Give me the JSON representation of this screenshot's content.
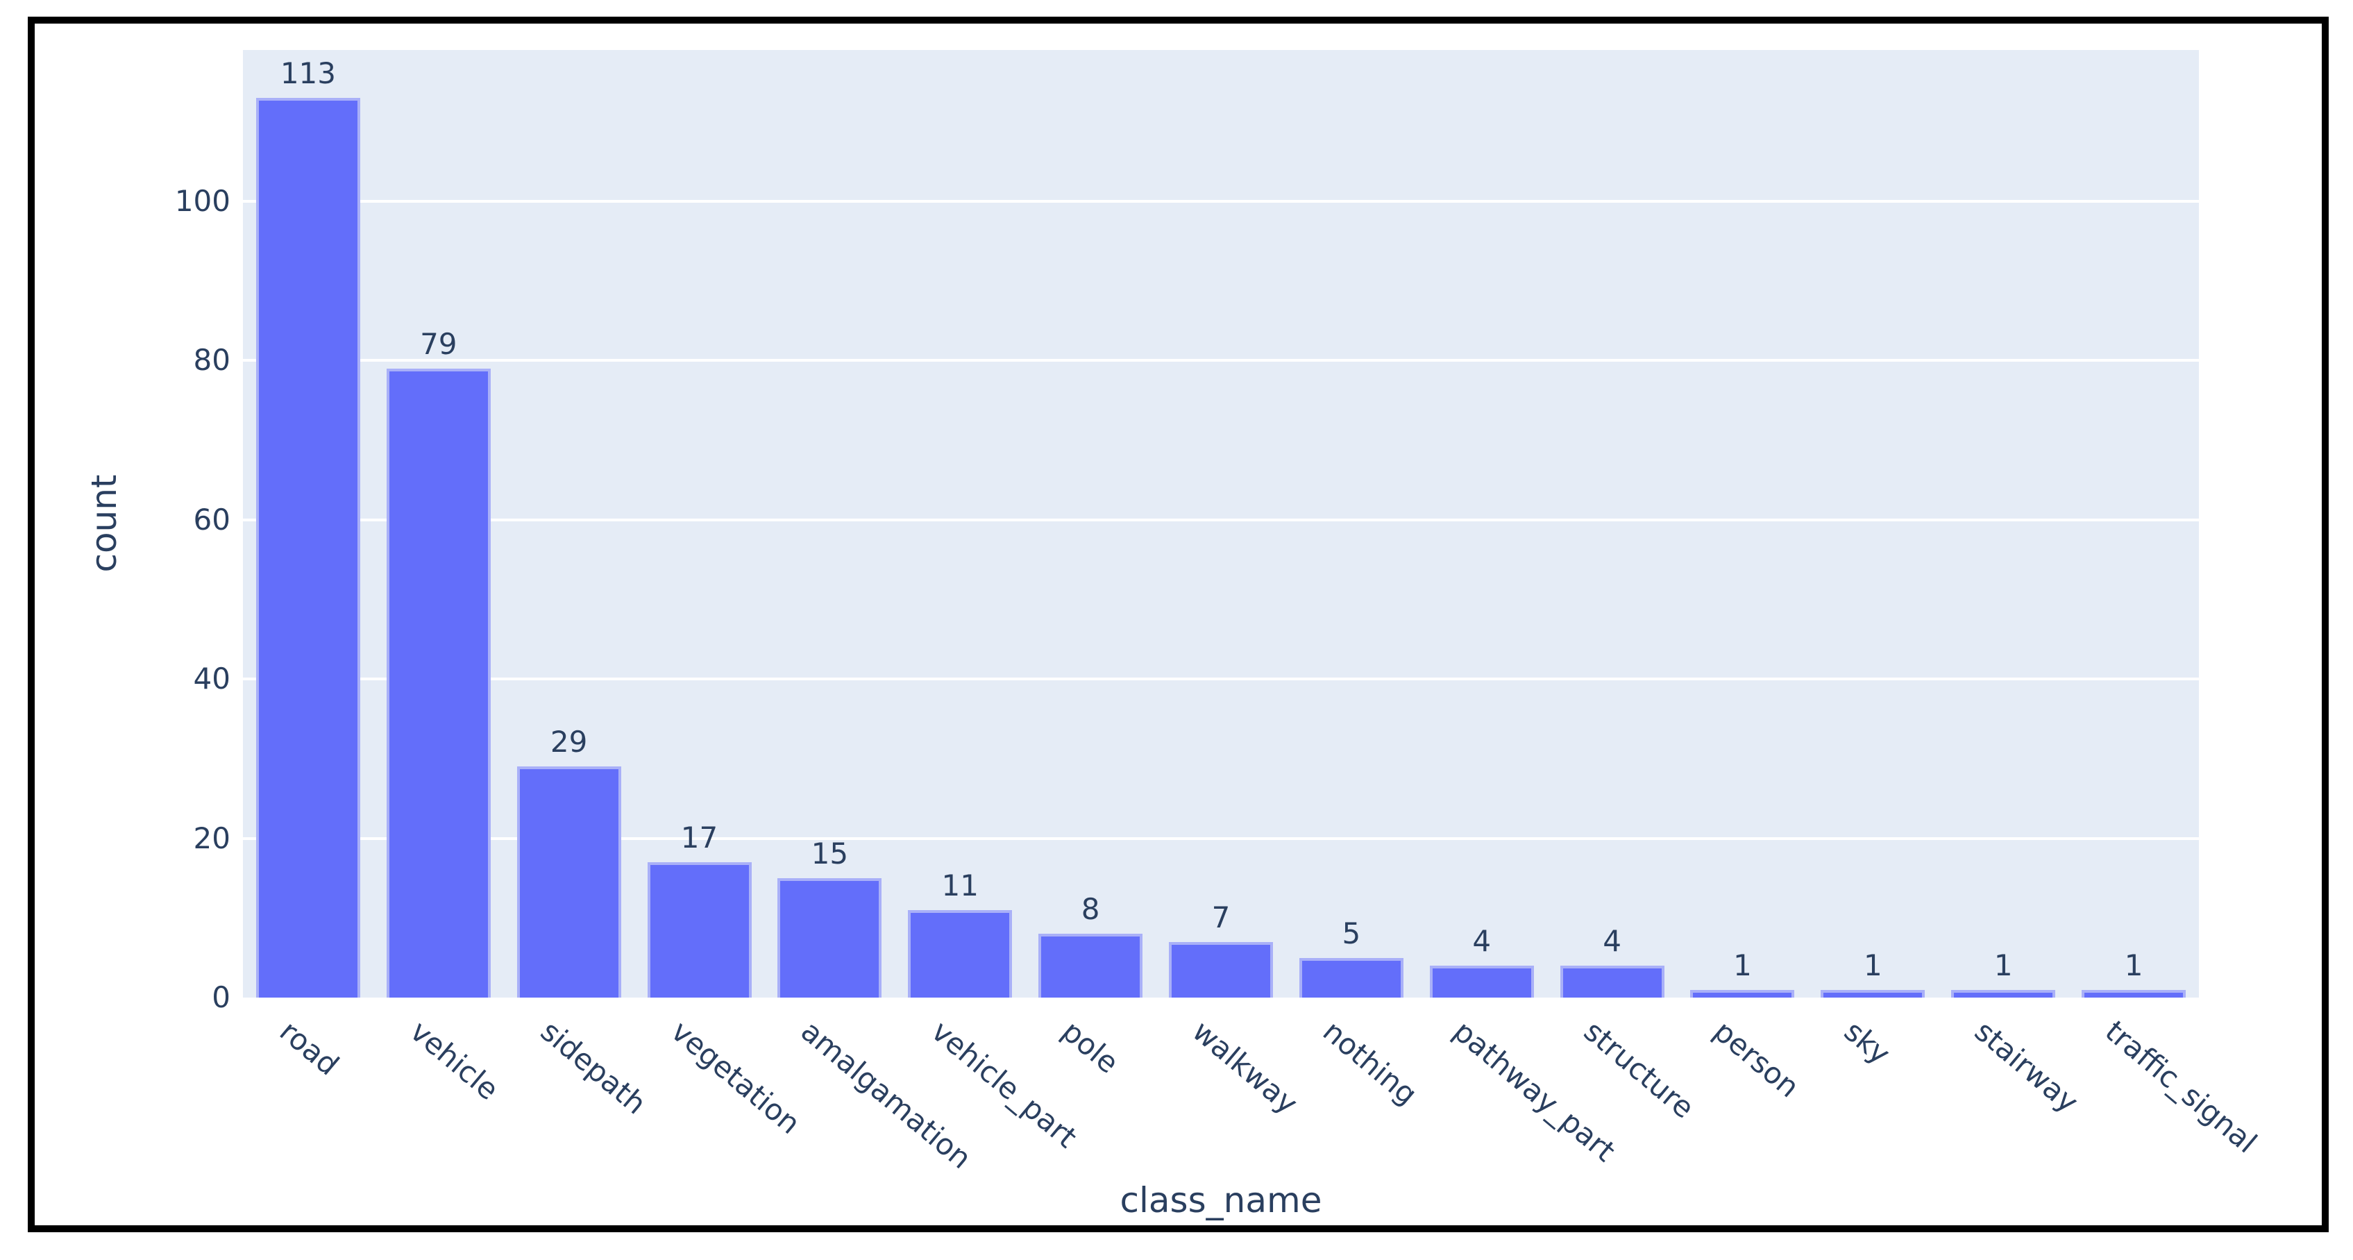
{
  "chart_data": {
    "type": "bar",
    "title": "",
    "xlabel": "class_name",
    "ylabel": "count",
    "categories": [
      "road",
      "vehicle",
      "sidepath",
      "vegetation",
      "amalgamation",
      "vehicle_part",
      "pole",
      "walkway",
      "nothing",
      "pathway_part",
      "structure",
      "person",
      "sky",
      "stairway",
      "traffic_signal"
    ],
    "values": [
      113,
      79,
      29,
      17,
      15,
      11,
      8,
      7,
      5,
      4,
      4,
      1,
      1,
      1,
      1
    ],
    "bar_value_labels": [
      "113",
      "79",
      "29",
      "17",
      "15",
      "11",
      "8",
      "7",
      "5",
      "4",
      "4",
      "1",
      "1",
      "1",
      "1"
    ],
    "yticks": [
      0,
      20,
      40,
      60,
      80,
      100
    ],
    "ylim": [
      0,
      119
    ],
    "grid": true,
    "legend": "none",
    "x_tick_angle_deg": 40,
    "colors": {
      "bar_fill": "#636efa",
      "bar_edge": "#a9b0f8",
      "plot_background": "#e5ecf6",
      "gridline": "#ffffff",
      "text": "#2a3f5f",
      "figure_border": "#000000",
      "figure_background": "#ffffff"
    }
  }
}
